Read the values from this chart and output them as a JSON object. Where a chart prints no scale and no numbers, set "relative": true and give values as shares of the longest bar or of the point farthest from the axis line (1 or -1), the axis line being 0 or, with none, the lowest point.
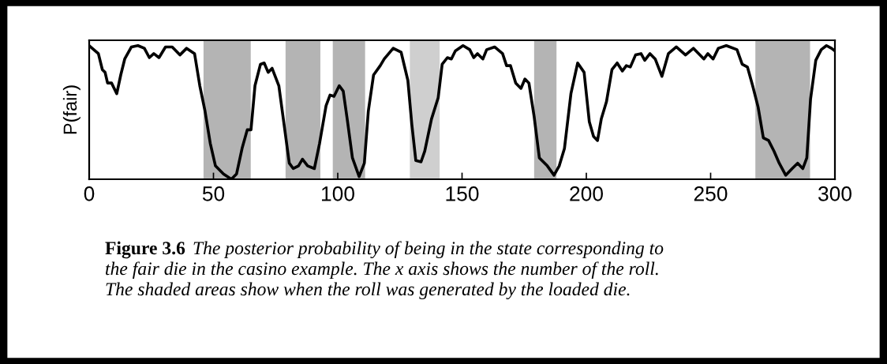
{
  "chart_data": {
    "type": "line",
    "relative": true,
    "ylabel": "P(fair)",
    "xlim": [
      0,
      300
    ],
    "xticks": [
      0,
      50,
      100,
      150,
      200,
      250,
      300
    ],
    "grid": false,
    "marker": "none",
    "line_style": "solid",
    "x": [
      0,
      3.7,
      5.3,
      6.4,
      7.4,
      9.0,
      11.1,
      12.7,
      14.3,
      17.0,
      19.6,
      22.2,
      24.2,
      26.0,
      28.1,
      30.7,
      33.4,
      36.5,
      39.2,
      42.4,
      44.5,
      46.6,
      48.7,
      50.8,
      54.0,
      57.2,
      59.3,
      61.5,
      63.6,
      65.1,
      66.7,
      68.9,
      70.4,
      72.0,
      73.6,
      76.3,
      78.4,
      80.5,
      82.1,
      84.2,
      85.8,
      87.9,
      90.6,
      92.7,
      95.3,
      96.9,
      98.5,
      100.6,
      102.2,
      103.8,
      105.9,
      108.6,
      110.7,
      112.3,
      114.4,
      117.1,
      118.7,
      122.3,
      125.5,
      128.2,
      129.8,
      131.4,
      133.5,
      135.0,
      137.7,
      140.4,
      142.0,
      144.1,
      145.7,
      147.3,
      150.4,
      153.1,
      154.7,
      156.2,
      158.4,
      159.9,
      163.1,
      166.3,
      167.9,
      169.5,
      171.6,
      173.7,
      175.3,
      176.9,
      179.0,
      181.1,
      184.3,
      187.0,
      189.1,
      191.2,
      193.8,
      196.5,
      199.1,
      201.2,
      202.9,
      204.5,
      206.0,
      208.1,
      210.3,
      212.4,
      214.5,
      216.1,
      217.7,
      219.8,
      222.0,
      223.5,
      225.6,
      227.7,
      230.4,
      233.0,
      236.2,
      239.9,
      243.1,
      247.3,
      248.9,
      251.0,
      253.1,
      256.3,
      260.6,
      262.7,
      264.8,
      266.9,
      269.1,
      271.2,
      273.3,
      275.5,
      277.6,
      280.2,
      282.8,
      285.0,
      287.1,
      288.7,
      290.2,
      292.3,
      294.5,
      296.6,
      298.6,
      300
    ],
    "series": [
      {
        "color": "#000000",
        "values": [
          1.0,
          0.94,
          0.82,
          0.8,
          0.72,
          0.72,
          0.64,
          0.78,
          0.9,
          0.99,
          1.0,
          0.98,
          0.91,
          0.94,
          0.91,
          0.99,
          0.99,
          0.93,
          0.98,
          0.94,
          0.7,
          0.51,
          0.27,
          0.1,
          0.04,
          0.0,
          0.04,
          0.23,
          0.37,
          0.37,
          0.7,
          0.86,
          0.87,
          0.8,
          0.83,
          0.7,
          0.41,
          0.12,
          0.08,
          0.1,
          0.15,
          0.1,
          0.08,
          0.27,
          0.55,
          0.63,
          0.62,
          0.7,
          0.66,
          0.45,
          0.16,
          0.02,
          0.12,
          0.51,
          0.78,
          0.85,
          0.9,
          0.98,
          0.95,
          0.74,
          0.41,
          0.14,
          0.13,
          0.21,
          0.45,
          0.61,
          0.86,
          0.91,
          0.9,
          0.96,
          1.0,
          0.97,
          0.91,
          0.94,
          0.9,
          0.97,
          0.99,
          0.94,
          0.85,
          0.85,
          0.72,
          0.68,
          0.75,
          0.72,
          0.47,
          0.16,
          0.1,
          0.03,
          0.1,
          0.23,
          0.64,
          0.87,
          0.8,
          0.43,
          0.32,
          0.29,
          0.45,
          0.58,
          0.82,
          0.87,
          0.81,
          0.85,
          0.84,
          0.93,
          0.94,
          0.89,
          0.94,
          0.9,
          0.77,
          0.94,
          0.99,
          0.93,
          0.98,
          0.9,
          0.94,
          0.9,
          0.98,
          1.0,
          0.97,
          0.86,
          0.84,
          0.7,
          0.54,
          0.31,
          0.29,
          0.21,
          0.12,
          0.03,
          0.08,
          0.12,
          0.08,
          0.16,
          0.6,
          0.89,
          0.97,
          1.0,
          0.98,
          0.96
        ]
      }
    ],
    "bands": [
      {
        "axis": "x",
        "from": 46,
        "to": 65,
        "color": "#b4b4b4"
      },
      {
        "axis": "x",
        "from": 79,
        "to": 93,
        "color": "#b4b4b4"
      },
      {
        "axis": "x",
        "from": 98,
        "to": 111,
        "color": "#b4b4b4"
      },
      {
        "axis": "x",
        "from": 129,
        "to": 141,
        "color": "#cfcfcf"
      },
      {
        "axis": "x",
        "from": 179,
        "to": 188,
        "color": "#b4b4b4"
      },
      {
        "axis": "x",
        "from": 268,
        "to": 290,
        "color": "#b4b4b4"
      }
    ],
    "annotations": [
      "Figure 3.6",
      "The posterior probability of being in the state corresponding to",
      "the fair die in the casino example. The x axis shows the number of the roll.",
      "The shaded areas show when the roll was generated by the loaded die."
    ]
  }
}
